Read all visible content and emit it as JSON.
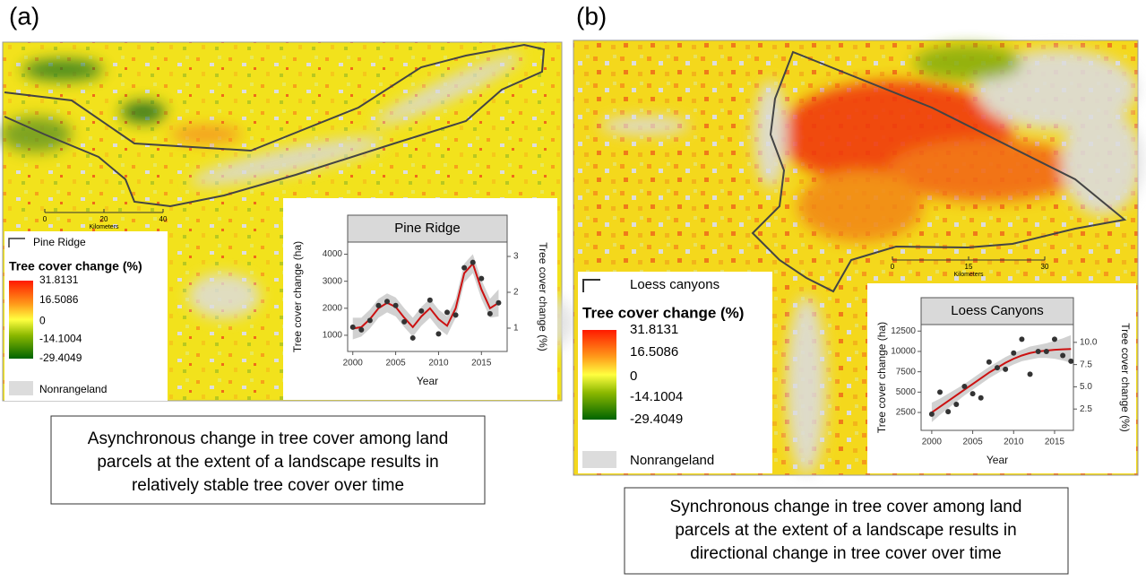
{
  "panels": [
    {
      "label": "(a)",
      "boundary_name": "Pine Ridge",
      "legend_title": "Tree cover change (%)",
      "legend_ticks": [
        31.8131,
        16.5086,
        0,
        -14.1004,
        -29.4049
      ],
      "nonrangeland": "Nonrangeland",
      "scale_bar": {
        "ticks": [
          0,
          20,
          40
        ],
        "unit": "Kilometers"
      },
      "caption": [
        "Asynchronous change in tree cover among land",
        "parcels at the extent of a landscape results in",
        "relatively stable tree cover over time"
      ]
    },
    {
      "label": "(b)",
      "boundary_name": "Loess canyons",
      "legend_title": "Tree cover change (%)",
      "legend_ticks": [
        31.8131,
        16.5086,
        0,
        -14.1004,
        -29.4049
      ],
      "nonrangeland": "Nonrangeland",
      "scale_bar": {
        "ticks": [
          0,
          15,
          30
        ],
        "unit": "Kilometers"
      },
      "caption": [
        "Synchronous change in tree cover among land",
        "parcels at the extent of a landscape results in",
        "directional change in  tree cover over time"
      ]
    }
  ],
  "chart_data": [
    {
      "type": "line",
      "title": "Pine Ridge",
      "x_label": "Year",
      "y_label": "Tree cover change (ha)",
      "y2_label": "Tree cover change (%)",
      "x": [
        2000,
        2001,
        2002,
        2003,
        2004,
        2005,
        2006,
        2007,
        2008,
        2009,
        2010,
        2011,
        2012,
        2013,
        2014,
        2015,
        2016,
        2017
      ],
      "xlim": [
        1999.4,
        2018
      ],
      "xticks": [
        2000,
        2005,
        2010,
        2015
      ],
      "ylim": [
        400,
        4450
      ],
      "yticks": [
        1000,
        2000,
        3000,
        4000
      ],
      "y2lim": [
        0.35,
        3.4
      ],
      "y2ticks": [
        1,
        2,
        3
      ],
      "series": [
        {
          "color": "#333333",
          "values": [
            1300,
            1200,
            1550,
            2100,
            2250,
            2100,
            1500,
            900,
            1900,
            2300,
            1050,
            1850,
            1750,
            3500,
            3700,
            3100,
            1800,
            2200
          ]
        },
        {
          "color": "#cc1111",
          "values": [
            1250,
            1300,
            1600,
            2000,
            2200,
            2050,
            1650,
            1300,
            1700,
            2000,
            1600,
            1350,
            2000,
            3300,
            3650,
            2700,
            2000,
            2200
          ],
          "lower": [
            850,
            950,
            1250,
            1650,
            1850,
            1700,
            1300,
            950,
            1350,
            1650,
            1250,
            1000,
            1650,
            2950,
            3300,
            2350,
            1650,
            1700
          ],
          "upper": [
            1650,
            1650,
            1950,
            2350,
            2550,
            2400,
            2000,
            1650,
            2050,
            2350,
            1950,
            1700,
            2350,
            3650,
            4000,
            3050,
            2350,
            2700
          ]
        }
      ]
    },
    {
      "type": "line",
      "title": "Loess Canyons",
      "x_label": "Year",
      "y_label": "Tree cover change (ha)",
      "y2_label": "Tree cover change (%)",
      "x": [
        2000,
        2001,
        2002,
        2003,
        2004,
        2005,
        2006,
        2007,
        2008,
        2009,
        2010,
        2011,
        2012,
        2013,
        2014,
        2015,
        2016,
        2017
      ],
      "xlim": [
        1998.7,
        2017.3
      ],
      "xticks": [
        2000,
        2005,
        2010,
        2015
      ],
      "ylim": [
        300,
        13300
      ],
      "yticks": [
        2500,
        5000,
        7500,
        10000,
        12500
      ],
      "y2lim": [
        0.1,
        12
      ],
      "y2ticks": [
        {
          "value": 2.5,
          "label": "2.5"
        },
        {
          "value": 5,
          "label": "5.0"
        },
        {
          "value": 7.5,
          "label": "7.5"
        },
        {
          "value": 10,
          "label": "10.0"
        }
      ],
      "series": [
        {
          "color": "#333333",
          "values": [
            2300,
            5000,
            2600,
            3500,
            5700,
            4800,
            4300,
            8700,
            8000,
            7800,
            9800,
            11500,
            7200,
            10000,
            10000,
            11500,
            9500,
            8800
          ]
        },
        {
          "color": "#cc1111",
          "values": [
            2500,
            3200,
            3900,
            4600,
            5300,
            6000,
            6700,
            7400,
            8000,
            8600,
            9100,
            9500,
            9800,
            10000,
            10100,
            10200,
            10250,
            10300
          ],
          "lower": [
            1300,
            2200,
            3000,
            3800,
            4600,
            5300,
            6000,
            6700,
            7300,
            7900,
            8400,
            8800,
            9000,
            9200,
            9200,
            9100,
            8900,
            8600
          ],
          "upper": [
            3700,
            4200,
            4800,
            5400,
            6000,
            6700,
            7400,
            8100,
            8700,
            9300,
            9800,
            10200,
            10600,
            10800,
            11000,
            11300,
            11600,
            12000
          ]
        }
      ]
    }
  ]
}
